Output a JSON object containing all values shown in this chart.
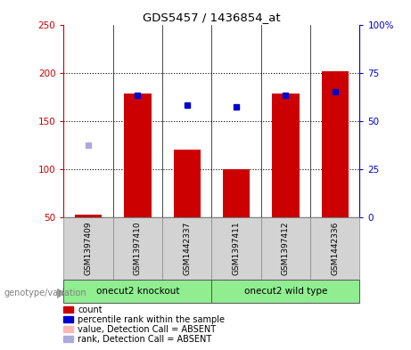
{
  "title": "GDS5457 / 1436854_at",
  "samples": [
    "GSM1397409",
    "GSM1397410",
    "GSM1442337",
    "GSM1397411",
    "GSM1397412",
    "GSM1442336"
  ],
  "count_values": [
    52,
    178,
    120,
    100,
    178,
    201
  ],
  "percentile_values": [
    null,
    63,
    58,
    57,
    63,
    65
  ],
  "absent_rank_values": [
    40,
    null,
    null,
    null,
    null,
    null
  ],
  "ylim_left": [
    50,
    250
  ],
  "ylim_right": [
    0,
    100
  ],
  "yticks_left": [
    50,
    100,
    150,
    200,
    250
  ],
  "yticks_right": [
    0,
    25,
    50,
    75,
    100
  ],
  "ytick_labels_left": [
    "50",
    "100",
    "150",
    "200",
    "250"
  ],
  "ytick_labels_right": [
    "0",
    "25",
    "50",
    "75",
    "100%"
  ],
  "left_axis_color": "#cc0000",
  "right_axis_color": "#0000cc",
  "bar_color": "#cc0000",
  "percentile_color": "#0000cc",
  "absent_rank_color": "#aaaadd",
  "bg_color": "#ffffff",
  "grid_lines": [
    100,
    150,
    200
  ],
  "group1_label": "onecut2 knockout",
  "group2_label": "onecut2 wild type",
  "group_color": "#90EE90",
  "genotype_label": "genotype/variation",
  "legend_items": [
    {
      "label": "count",
      "color": "#cc0000"
    },
    {
      "label": "percentile rank within the sample",
      "color": "#0000cc"
    },
    {
      "label": "value, Detection Call = ABSENT",
      "color": "#ffb6b6"
    },
    {
      "label": "rank, Detection Call = ABSENT",
      "color": "#aaaadd"
    }
  ]
}
